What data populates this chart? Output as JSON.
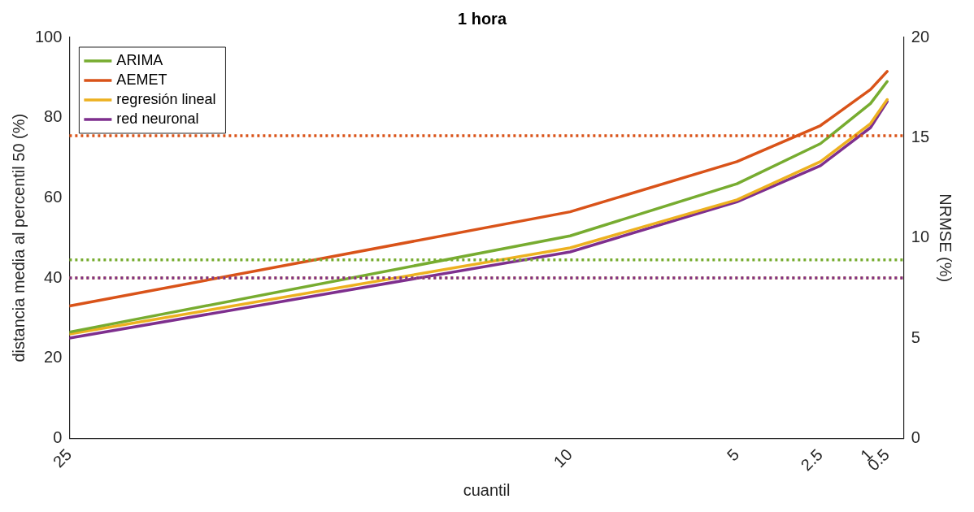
{
  "chart_data": {
    "type": "line",
    "title": "1 hora",
    "xlabel": "cuantil",
    "ylabel": "distancia media al percentil 50 (%)",
    "y2label": "NRMSE (%)",
    "x": [
      25,
      10,
      5,
      2.5,
      1,
      0.5
    ],
    "series": [
      {
        "name": "ARIMA",
        "color": "#77ac30",
        "values": [
          26.5,
          50.5,
          63.5,
          73.5,
          83.5,
          89
        ]
      },
      {
        "name": "AEMET",
        "color": "#d95319",
        "values": [
          33,
          56.5,
          69,
          78,
          87,
          91.5
        ]
      },
      {
        "name": "regresión lineal",
        "color": "#edb120",
        "values": [
          26,
          47.5,
          59.5,
          69,
          78.5,
          84.5
        ]
      },
      {
        "name": "red neuronal",
        "color": "#7e2f8e",
        "values": [
          25,
          46.5,
          59,
          68,
          77.5,
          84
        ]
      }
    ],
    "xlim": [
      25,
      0
    ],
    "xticks": [
      25,
      10,
      5,
      2.5,
      1,
      0.5
    ],
    "ylim": [
      0,
      100
    ],
    "yticks": [
      0,
      20,
      40,
      60,
      80,
      100
    ],
    "y2lim": [
      0,
      20
    ],
    "y2ticks": [
      0,
      5,
      10,
      15,
      20
    ],
    "ref_lines": [
      {
        "axis": "y2",
        "value": 15.1,
        "color": "#d95319",
        "line_style": "dotted"
      },
      {
        "axis": "y2",
        "value": 8.9,
        "color": "#77ac30",
        "line_style": "dotted"
      },
      {
        "axis": "y2",
        "value": 8.0,
        "color": "#edb120",
        "line_style": "dotted"
      },
      {
        "axis": "y2",
        "value": 8.0,
        "color": "#7e2f8e",
        "line_style": "dotted"
      }
    ],
    "legend": "top left",
    "grid": false,
    "marker": "none",
    "line_style": "solid"
  }
}
